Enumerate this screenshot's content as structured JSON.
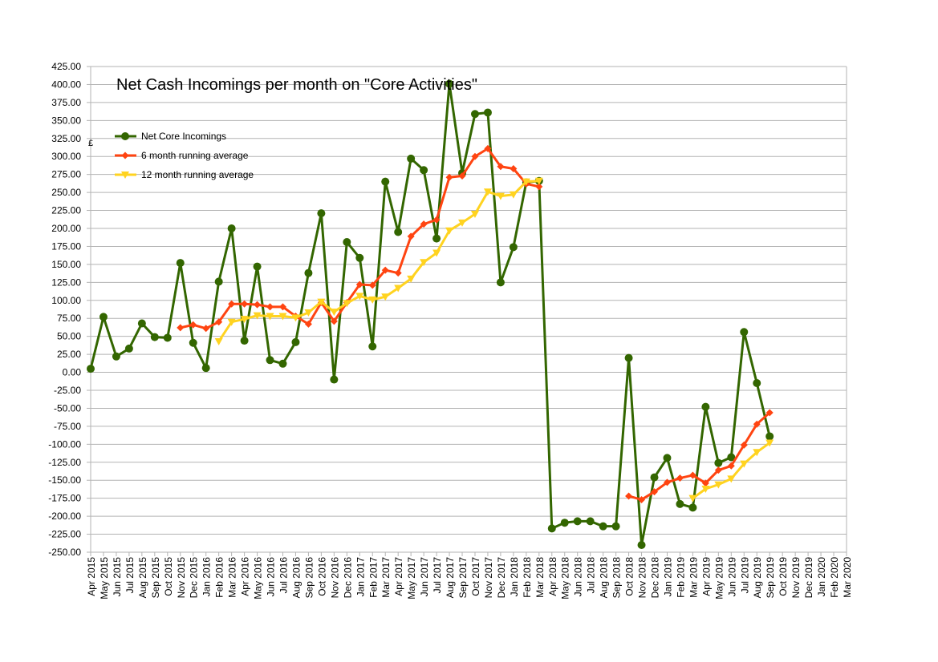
{
  "chart_data": {
    "type": "line",
    "title": "Net Cash Incomings per month on \"Core Activities\"",
    "ylabel": "£",
    "ylim": [
      -250,
      425
    ],
    "ytick_step": 25,
    "ytick_format": "2dp",
    "grid": true,
    "legend_position": "top-left",
    "categories": [
      "Apr 2015",
      "May 2015",
      "Jun 2015",
      "Jul 2015",
      "Aug 2015",
      "Sep 2015",
      "Oct 2015",
      "Nov 2015",
      "Dec 2015",
      "Jan 2016",
      "Feb 2016",
      "Mar 2016",
      "Apr 2016",
      "May 2016",
      "Jun 2016",
      "Jul 2016",
      "Aug 2016",
      "Sep 2016",
      "Oct 2016",
      "Nov 2016",
      "Dec 2016",
      "Jan 2017",
      "Feb 2017",
      "Mar 2017",
      "Apr 2017",
      "May 2017",
      "Jun 2017",
      "Jul 2017",
      "Aug 2017",
      "Sep 2017",
      "Oct 2017",
      "Nov 2017",
      "Dec 2017",
      "Jan 2018",
      "Feb 2018",
      "Mar 2018",
      "Apr 2018",
      "May 2018",
      "Jun 2018",
      "Jul 2018",
      "Aug 2018",
      "Sep 2018",
      "Oct 2018",
      "Nov 2018",
      "Dec 2018",
      "Jan 2019",
      "Feb 2019",
      "Mar 2019",
      "Apr 2019",
      "May 2019",
      "Jun 2019",
      "Jul 2019",
      "Aug 2019",
      "Sep 2019",
      "Oct 2019",
      "Nov 2019",
      "Dec 2019",
      "Jan 2020",
      "Feb 2020",
      "Mar 2020"
    ],
    "series": [
      {
        "name": "Net Core Incomings",
        "color": "#336600",
        "marker": "circle",
        "values": [
          5,
          77,
          22,
          33,
          68,
          49,
          48,
          152,
          41,
          6,
          126,
          200,
          44,
          147,
          17,
          12,
          42,
          138,
          221,
          -10,
          181,
          159,
          36,
          265,
          195,
          297,
          281,
          186,
          401,
          277,
          359,
          361,
          125,
          174,
          264,
          266,
          -217,
          -209,
          -207,
          -207,
          -214,
          -214,
          20,
          -240,
          -146,
          -119,
          -183,
          -188,
          -48,
          -126,
          -118,
          56,
          -15,
          -89,
          null,
          null,
          null,
          null,
          null,
          null
        ]
      },
      {
        "name": "6 month running average",
        "color": "#ff4411",
        "marker": "diamond",
        "values": [
          null,
          null,
          null,
          null,
          null,
          null,
          null,
          62,
          66,
          61,
          70,
          95,
          95,
          94,
          91,
          91,
          78,
          67,
          97,
          71,
          97,
          122,
          121,
          142,
          138,
          189,
          206,
          212,
          271,
          273,
          300,
          311,
          286,
          283,
          262,
          258,
          null,
          null,
          null,
          null,
          null,
          null,
          -172,
          -177,
          -166,
          -153,
          -147,
          -143,
          -154,
          -136,
          -130,
          -101,
          -72,
          -56,
          null,
          null,
          null,
          null,
          null,
          null
        ]
      },
      {
        "name": "12 month running average",
        "color": "#ffd320",
        "marker": "triangle-down",
        "values": [
          null,
          null,
          null,
          null,
          null,
          null,
          null,
          null,
          null,
          null,
          43,
          70,
          74,
          79,
          78,
          78,
          76,
          83,
          98,
          84,
          96,
          106,
          101,
          105,
          117,
          130,
          153,
          166,
          197,
          208,
          220,
          251,
          245,
          247,
          265,
          266,
          null,
          null,
          null,
          null,
          null,
          null,
          null,
          null,
          null,
          null,
          null,
          -175,
          -162,
          -156,
          -148,
          -127,
          -111,
          -98,
          null,
          null,
          null,
          null,
          null,
          null
        ]
      }
    ]
  }
}
